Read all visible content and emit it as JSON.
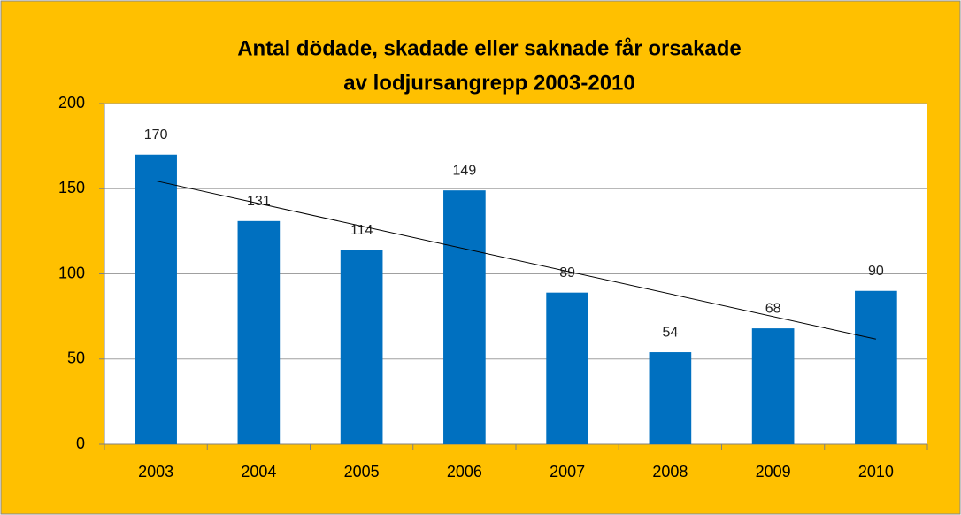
{
  "chart_data": {
    "type": "bar",
    "title": [
      "Antal dödade, skadade eller saknade får orsakade",
      "av lodjursangrepp 2003-2010"
    ],
    "categories": [
      "2003",
      "2004",
      "2005",
      "2006",
      "2007",
      "2008",
      "2009",
      "2010"
    ],
    "values": [
      170,
      131,
      114,
      149,
      89,
      54,
      68,
      90
    ],
    "color": "#0070c0",
    "ylim": [
      0,
      200
    ],
    "yticks": [
      0,
      50,
      100,
      150,
      200
    ],
    "grid": true,
    "trendline": true
  }
}
